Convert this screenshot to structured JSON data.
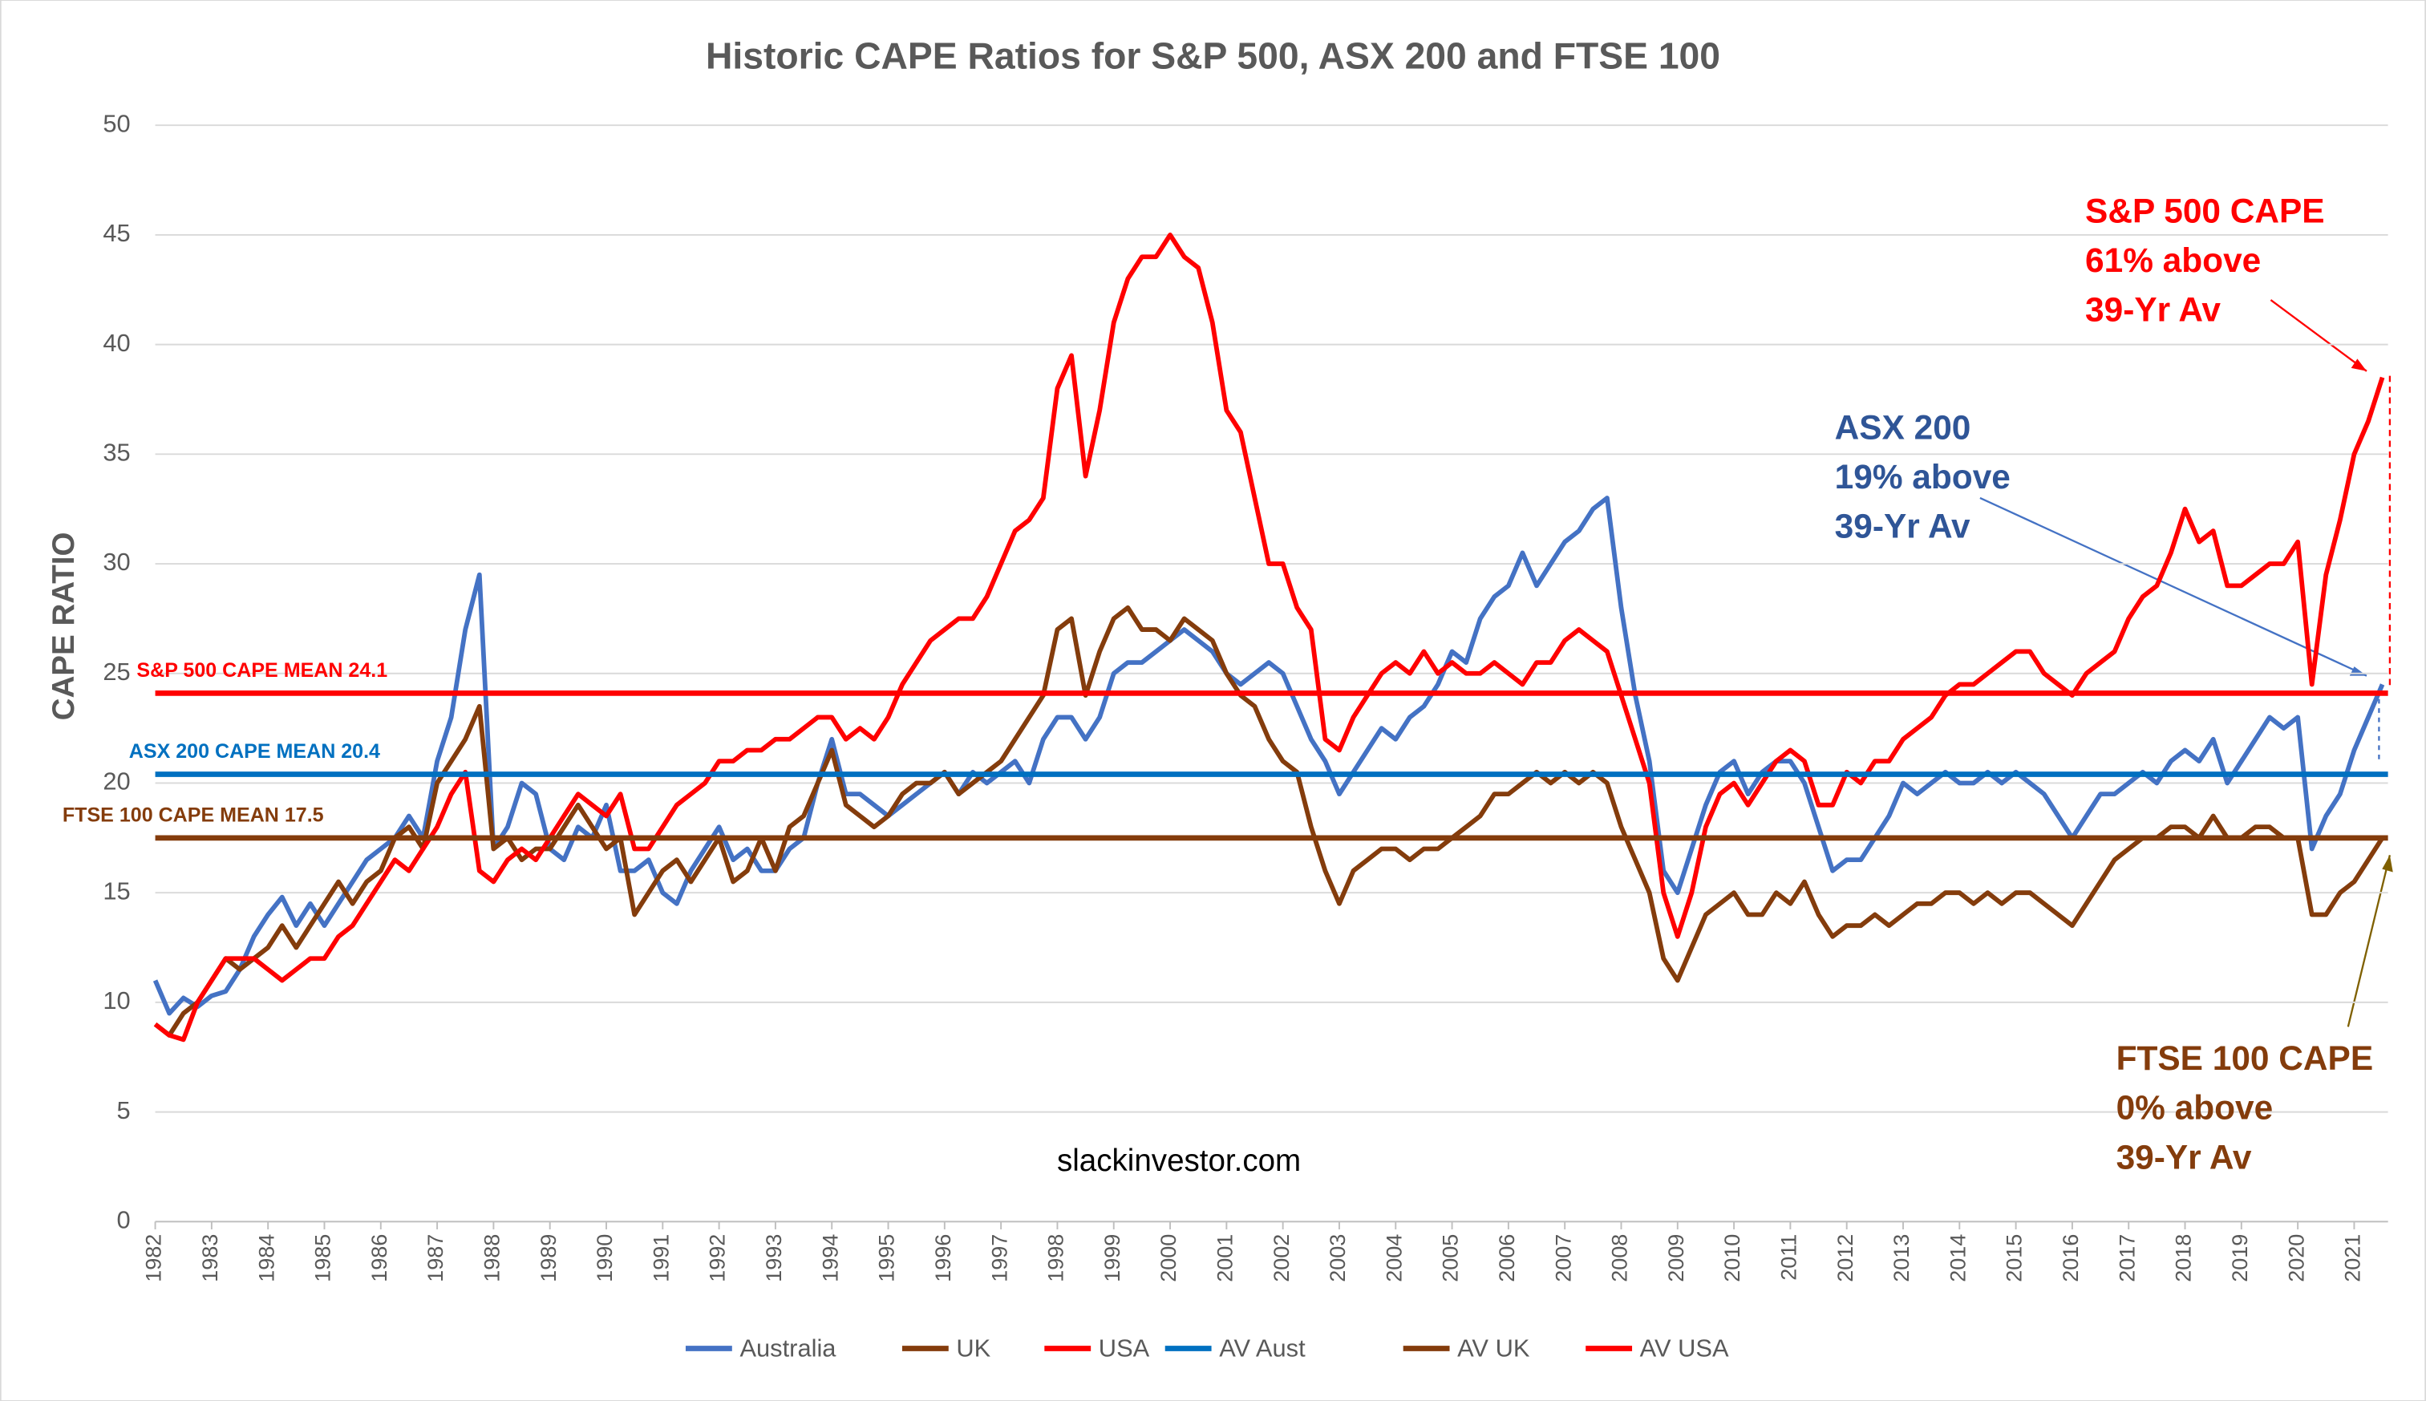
{
  "chart_data": {
    "type": "line",
    "title": "Historic CAPE Ratios for S&P 500, ASX 200 and FTSE 100",
    "y_label": "CAPE RATIO",
    "watermark": "slackinvestor.com",
    "x": [
      1982,
      1982.25,
      1982.5,
      1982.75,
      1983,
      1983.25,
      1983.5,
      1983.75,
      1984,
      1984.25,
      1984.5,
      1984.75,
      1985,
      1985.25,
      1985.5,
      1985.75,
      1986,
      1986.25,
      1986.5,
      1986.75,
      1987,
      1987.25,
      1987.5,
      1987.75,
      1988,
      1988.25,
      1988.5,
      1988.75,
      1989,
      1989.25,
      1989.5,
      1989.75,
      1990,
      1990.25,
      1990.5,
      1990.75,
      1991,
      1991.25,
      1991.5,
      1991.75,
      1992,
      1992.25,
      1992.5,
      1992.75,
      1993,
      1993.25,
      1993.5,
      1993.75,
      1994,
      1994.25,
      1994.5,
      1994.75,
      1995,
      1995.25,
      1995.5,
      1995.75,
      1996,
      1996.25,
      1996.5,
      1996.75,
      1997,
      1997.25,
      1997.5,
      1997.75,
      1998,
      1998.25,
      1998.5,
      1998.75,
      1999,
      1999.25,
      1999.5,
      1999.75,
      2000,
      2000.25,
      2000.5,
      2000.75,
      2001,
      2001.25,
      2001.5,
      2001.75,
      2002,
      2002.25,
      2002.5,
      2002.75,
      2003,
      2003.25,
      2003.5,
      2003.75,
      2004,
      2004.25,
      2004.5,
      2004.75,
      2005,
      2005.25,
      2005.5,
      2005.75,
      2006,
      2006.25,
      2006.5,
      2006.75,
      2007,
      2007.25,
      2007.5,
      2007.75,
      2008,
      2008.25,
      2008.5,
      2008.75,
      2009,
      2009.25,
      2009.5,
      2009.75,
      2010,
      2010.25,
      2010.5,
      2010.75,
      2011,
      2011.25,
      2011.5,
      2011.75,
      2012,
      2012.25,
      2012.5,
      2012.75,
      2013,
      2013.25,
      2013.5,
      2013.75,
      2014,
      2014.25,
      2014.5,
      2014.75,
      2015,
      2015.25,
      2015.5,
      2015.75,
      2016,
      2016.25,
      2016.5,
      2016.75,
      2017,
      2017.25,
      2017.5,
      2017.75,
      2018,
      2018.25,
      2018.5,
      2018.75,
      2019,
      2019.25,
      2019.5,
      2019.75,
      2020,
      2020.25,
      2020.5,
      2020.75,
      2021,
      2021.25,
      2021.5
    ],
    "series": [
      {
        "name": "Australia",
        "color": "#4472c4",
        "values": [
          11,
          9.5,
          10.2,
          9.8,
          10.3,
          10.5,
          11.5,
          13,
          14,
          14.8,
          13.5,
          14.5,
          13.5,
          14.5,
          15.5,
          16.5,
          17,
          17.5,
          18.5,
          17.5,
          21,
          23,
          27,
          29.5,
          17,
          18,
          20,
          19.5,
          17,
          16.5,
          18,
          17.5,
          19,
          16,
          16,
          16.5,
          15,
          14.5,
          16,
          17,
          18,
          16.5,
          17,
          16,
          16,
          17,
          17.5,
          20,
          22,
          19.5,
          19.5,
          19,
          18.5,
          19,
          19.5,
          20,
          20.5,
          19.5,
          20.5,
          20,
          20.5,
          21,
          20,
          22,
          23,
          23,
          22,
          23,
          25,
          25.5,
          25.5,
          26,
          26.5,
          27,
          26.5,
          26,
          25,
          24.5,
          25,
          25.5,
          25,
          23.5,
          22,
          21,
          19.5,
          20.5,
          21.5,
          22.5,
          22,
          23,
          23.5,
          24.5,
          26,
          25.5,
          27.5,
          28.5,
          29,
          30.5,
          29,
          30,
          31,
          31.5,
          32.5,
          33,
          28,
          24,
          21,
          16,
          15,
          17,
          19,
          20.5,
          21,
          19.5,
          20.5,
          21,
          21,
          20,
          18,
          16,
          16.5,
          16.5,
          17.5,
          18.5,
          20,
          19.5,
          20,
          20.5,
          20,
          20,
          20.5,
          20,
          20.5,
          20,
          19.5,
          18.5,
          17.5,
          18.5,
          19.5,
          19.5,
          20,
          20.5,
          20,
          21,
          21.5,
          21,
          22,
          20,
          21,
          22,
          23,
          22.5,
          23,
          17,
          18.5,
          19.5,
          21.5,
          23,
          24.5
        ]
      },
      {
        "name": "UK",
        "color": "#843c0c",
        "values": [
          9,
          8.5,
          9.5,
          10,
          11,
          12,
          11.5,
          12,
          12.5,
          13.5,
          12.5,
          13.5,
          14.5,
          15.5,
          14.5,
          15.5,
          16,
          17.5,
          18,
          17,
          20,
          21,
          22,
          23.5,
          17,
          17.5,
          16.5,
          17,
          17,
          18,
          19,
          18,
          17,
          17.5,
          14,
          15,
          16,
          16.5,
          15.5,
          16.5,
          17.5,
          15.5,
          16,
          17.5,
          16,
          18,
          18.5,
          20,
          21.5,
          19,
          18.5,
          18,
          18.5,
          19.5,
          20,
          20,
          20.5,
          19.5,
          20,
          20.5,
          21,
          22,
          23,
          24,
          27,
          27.5,
          24,
          26,
          27.5,
          28,
          27,
          27,
          26.5,
          27.5,
          27,
          26.5,
          25,
          24,
          23.5,
          22,
          21,
          20.5,
          18,
          16,
          14.5,
          16,
          16.5,
          17,
          17,
          16.5,
          17,
          17,
          17.5,
          18,
          18.5,
          19.5,
          19.5,
          20,
          20.5,
          20,
          20.5,
          20,
          20.5,
          20,
          18,
          16.5,
          15,
          12,
          11,
          12.5,
          14,
          14.5,
          15,
          14,
          14,
          15,
          14.5,
          15.5,
          14,
          13,
          13.5,
          13.5,
          14,
          13.5,
          14,
          14.5,
          14.5,
          15,
          15,
          14.5,
          15,
          14.5,
          15,
          15,
          14.5,
          14,
          13.5,
          14.5,
          15.5,
          16.5,
          17,
          17.5,
          17.5,
          18,
          18,
          17.5,
          18.5,
          17.5,
          17.5,
          18,
          18,
          17.5,
          17.5,
          14,
          14,
          15,
          15.5,
          16.5,
          17.5
        ]
      },
      {
        "name": "USA",
        "color": "#ff0000",
        "values": [
          9,
          8.5,
          8.3,
          10,
          11,
          12,
          12,
          12,
          11.5,
          11,
          11.5,
          12,
          12,
          13,
          13.5,
          14.5,
          15.5,
          16.5,
          16,
          17,
          18,
          19.5,
          20.5,
          16,
          15.5,
          16.5,
          17,
          16.5,
          17.5,
          18.5,
          19.5,
          19,
          18.5,
          19.5,
          17,
          17,
          18,
          19,
          19.5,
          20,
          21,
          21,
          21.5,
          21.5,
          22,
          22,
          22.5,
          23,
          23,
          22,
          22.5,
          22,
          23,
          24.5,
          25.5,
          26.5,
          27,
          27.5,
          27.5,
          28.5,
          30,
          31.5,
          32,
          33,
          38,
          39.5,
          34,
          37,
          41,
          43,
          44,
          44,
          45,
          44,
          43.5,
          41,
          37,
          36,
          33,
          30,
          30,
          28,
          27,
          22,
          21.5,
          23,
          24,
          25,
          25.5,
          25,
          26,
          25,
          25.5,
          25,
          25,
          25.5,
          25,
          24.5,
          25.5,
          25.5,
          26.5,
          27,
          26.5,
          26,
          24,
          22,
          20,
          15,
          13,
          15,
          18,
          19.5,
          20,
          19,
          20,
          21,
          21.5,
          21,
          19,
          19,
          20.5,
          20,
          21,
          21,
          22,
          22.5,
          23,
          24,
          24.5,
          24.5,
          25,
          25.5,
          26,
          26,
          25,
          24.5,
          24,
          25,
          25.5,
          26,
          27.5,
          28.5,
          29,
          30.5,
          32.5,
          31,
          31.5,
          29,
          29,
          29.5,
          30,
          30,
          31,
          24.5,
          29.5,
          32,
          35,
          36.5,
          38.5
        ]
      },
      {
        "name": "AV Aust",
        "color": "#0070c0",
        "value": 20.4,
        "label": "ASX 200 CAPE MEAN 20.4"
      },
      {
        "name": "AV UK",
        "color": "#843c0c",
        "value": 17.5,
        "label": "FTSE 100 CAPE MEAN 17.5"
      },
      {
        "name": "AV USA",
        "color": "#ff0000",
        "value": 24.1,
        "label": "S&P 500 CAPE MEAN 24.1"
      }
    ],
    "annotations": [
      {
        "lines": [
          "S&P 500 CAPE",
          "61% above",
          "39-Yr Av"
        ],
        "color": "#ff0000"
      },
      {
        "lines": [
          "ASX 200",
          "19% above",
          "39-Yr Av"
        ],
        "color": "#2f5597"
      },
      {
        "lines": [
          "FTSE 100 CAPE",
          "0% above",
          "39-Yr Av"
        ],
        "color": "#843c0c"
      }
    ],
    "xlim": [
      1982,
      2021.6
    ],
    "xticks": [
      1982,
      1983,
      1984,
      1985,
      1986,
      1987,
      1988,
      1989,
      1990,
      1991,
      1992,
      1993,
      1994,
      1995,
      1996,
      1997,
      1998,
      1999,
      2000,
      2001,
      2002,
      2003,
      2004,
      2005,
      2006,
      2007,
      2008,
      2009,
      2010,
      2011,
      2012,
      2013,
      2014,
      2015,
      2016,
      2017,
      2018,
      2019,
      2020,
      2021
    ],
    "ylim": [
      0,
      50
    ],
    "yticks": [
      0,
      5,
      10,
      15,
      20,
      25,
      30,
      35,
      40,
      45,
      50
    ],
    "grid": true
  }
}
